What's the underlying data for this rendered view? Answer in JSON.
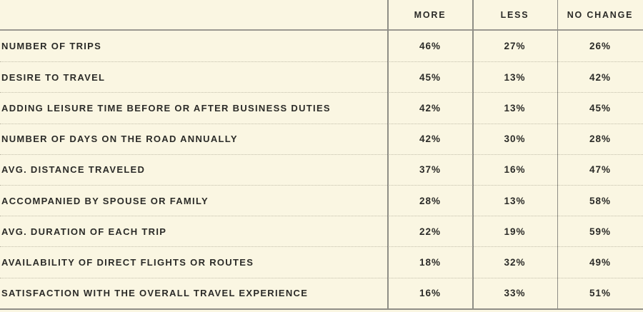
{
  "chart_data": {
    "type": "table",
    "columns": [
      "MORE",
      "LESS",
      "NO CHANGE"
    ],
    "rows": [
      {
        "label": "NUMBER OF TRIPS",
        "values": [
          "46%",
          "27%",
          "26%"
        ]
      },
      {
        "label": "DESIRE TO TRAVEL",
        "values": [
          "45%",
          "13%",
          "42%"
        ]
      },
      {
        "label": "ADDING LEISURE TIME BEFORE OR AFTER BUSINESS DUTIES",
        "values": [
          "42%",
          "13%",
          "45%"
        ]
      },
      {
        "label": "NUMBER OF DAYS ON THE ROAD ANNUALLY",
        "values": [
          "42%",
          "30%",
          "28%"
        ]
      },
      {
        "label": "AVG. DISTANCE TRAVELED",
        "values": [
          "37%",
          "16%",
          "47%"
        ]
      },
      {
        "label": "ACCOMPANIED BY SPOUSE OR FAMILY",
        "values": [
          "28%",
          "13%",
          "58%"
        ]
      },
      {
        "label": "AVG. DURATION OF EACH TRIP",
        "values": [
          "22%",
          "19%",
          "59%"
        ]
      },
      {
        "label": "AVAILABILITY OF DIRECT FLIGHTS OR ROUTES",
        "values": [
          "18%",
          "32%",
          "49%"
        ]
      },
      {
        "label": "SATISFACTION WITH THE OVERALL TRAVEL EXPERIENCE",
        "values": [
          "16%",
          "33%",
          "51%"
        ]
      }
    ],
    "legend_position": "top",
    "grid": "dotted row separators, solid header and bottom rules, solid column rules"
  },
  "colors": {
    "background": "#faf6e2",
    "solid_line": "#8f8e86",
    "dotted_line": "#c3bfab",
    "text": "#2b2b28"
  }
}
